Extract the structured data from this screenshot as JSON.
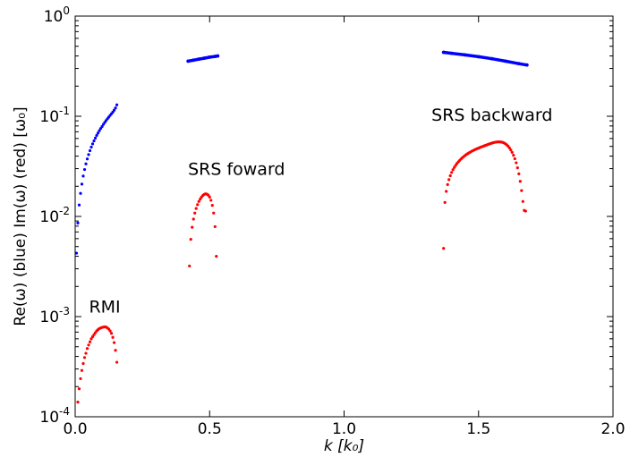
{
  "chart_data": {
    "type": "scatter",
    "xlabel": "k [k₀]",
    "ylabel": "Re(ω) (blue) Im(ω) (red) [ω₀]",
    "xlim": [
      0.0,
      2.0
    ],
    "ylim": [
      0.0001,
      1
    ],
    "yscale": "log",
    "grid": false,
    "x_ticks": [
      "0.0",
      "0.5",
      "1.0",
      "1.5",
      "2.0"
    ],
    "y_ticks": [
      {
        "base": "10",
        "exp": "-4"
      },
      {
        "base": "10",
        "exp": "-3"
      },
      {
        "base": "10",
        "exp": "-2"
      },
      {
        "base": "10",
        "exp": "-1"
      },
      {
        "base": "10",
        "exp": "0"
      }
    ],
    "annotations": [
      {
        "text": "RMI",
        "x": 0.11,
        "y": 0.0011
      },
      {
        "text": "SRS foward",
        "x": 0.6,
        "y": 0.026
      },
      {
        "text": "SRS backward",
        "x": 1.55,
        "y": 0.09
      }
    ],
    "series": [
      {
        "id": "re_rmi",
        "color": "#0000ff",
        "marker": "dot",
        "dense": false,
        "x": [
          0.005,
          0.01,
          0.015,
          0.02,
          0.025,
          0.03,
          0.035,
          0.04,
          0.045,
          0.05,
          0.055,
          0.06,
          0.065,
          0.07,
          0.075,
          0.08,
          0.085,
          0.09,
          0.095,
          0.1,
          0.105,
          0.11,
          0.115,
          0.12,
          0.125,
          0.13,
          0.135,
          0.14,
          0.145,
          0.15,
          0.155
        ],
        "y": [
          0.0043,
          0.0086,
          0.013,
          0.017,
          0.021,
          0.0253,
          0.0294,
          0.0335,
          0.0375,
          0.0414,
          0.0453,
          0.0492,
          0.053,
          0.0568,
          0.0606,
          0.0644,
          0.0681,
          0.0718,
          0.0755,
          0.079,
          0.083,
          0.0868,
          0.0906,
          0.0944,
          0.098,
          0.102,
          0.106,
          0.11,
          0.115,
          0.121,
          0.13
        ]
      },
      {
        "id": "re_srs_forward",
        "color": "#0000ff",
        "marker": "dot",
        "dense": true,
        "x": [
          0.42,
          0.44,
          0.46,
          0.48,
          0.5,
          0.52,
          0.53
        ],
        "y": [
          0.355,
          0.363,
          0.372,
          0.38,
          0.389,
          0.396,
          0.4
        ]
      },
      {
        "id": "re_srs_backward",
        "color": "#0000ff",
        "marker": "dot",
        "dense": true,
        "x": [
          1.37,
          1.4,
          1.45,
          1.5,
          1.55,
          1.6,
          1.65,
          1.68
        ],
        "y": [
          0.435,
          0.425,
          0.41,
          0.393,
          0.375,
          0.355,
          0.335,
          0.325
        ]
      },
      {
        "id": "im_rmi",
        "color": "#ff0000",
        "marker": "dot",
        "dense": false,
        "x": [
          0.01,
          0.015,
          0.02,
          0.025,
          0.03,
          0.035,
          0.04,
          0.045,
          0.05,
          0.055,
          0.06,
          0.065,
          0.07,
          0.075,
          0.08,
          0.085,
          0.09,
          0.095,
          0.1,
          0.105,
          0.11,
          0.115,
          0.12,
          0.125,
          0.13,
          0.135,
          0.14,
          0.145,
          0.15,
          0.155
        ],
        "y": [
          0.00014,
          0.00019,
          0.00024,
          0.00029,
          0.00034,
          0.00039,
          0.00043,
          0.00048,
          0.00052,
          0.00056,
          0.0006,
          0.00063,
          0.00066,
          0.00069,
          0.00072,
          0.00074,
          0.00076,
          0.00077,
          0.00078,
          0.000785,
          0.00079,
          0.000785,
          0.00077,
          0.00075,
          0.00072,
          0.00068,
          0.00062,
          0.00055,
          0.00046,
          0.00035
        ]
      },
      {
        "id": "im_srs_forward",
        "color": "#ff0000",
        "marker": "dot",
        "dense": false,
        "x": [
          0.425,
          0.43,
          0.435,
          0.44,
          0.445,
          0.45,
          0.455,
          0.46,
          0.465,
          0.47,
          0.475,
          0.48,
          0.485,
          0.49,
          0.495,
          0.5,
          0.505,
          0.51,
          0.515,
          0.52,
          0.525
        ],
        "y": [
          0.0032,
          0.0059,
          0.0078,
          0.0094,
          0.0108,
          0.012,
          0.0131,
          0.0141,
          0.0149,
          0.0156,
          0.0162,
          0.0166,
          0.0168,
          0.0167,
          0.0163,
          0.0156,
          0.0145,
          0.0129,
          0.0108,
          0.0079,
          0.004
        ]
      },
      {
        "id": "im_srs_backward",
        "color": "#ff0000",
        "marker": "dot",
        "dense": false,
        "x": [
          1.37,
          1.375,
          1.38,
          1.385,
          1.39,
          1.395,
          1.4,
          1.405,
          1.41,
          1.415,
          1.42,
          1.425,
          1.43,
          1.435,
          1.44,
          1.445,
          1.45,
          1.455,
          1.46,
          1.465,
          1.47,
          1.475,
          1.48,
          1.485,
          1.49,
          1.495,
          1.5,
          1.505,
          1.51,
          1.515,
          1.52,
          1.525,
          1.53,
          1.535,
          1.54,
          1.545,
          1.55,
          1.555,
          1.56,
          1.565,
          1.57,
          1.575,
          1.58,
          1.585,
          1.59,
          1.595,
          1.6,
          1.605,
          1.61,
          1.615,
          1.62,
          1.625,
          1.63,
          1.635,
          1.64,
          1.645,
          1.65,
          1.655,
          1.66,
          1.665,
          1.67,
          1.675
        ],
        "y": [
          0.0048,
          0.0138,
          0.0178,
          0.0208,
          0.0233,
          0.0255,
          0.0275,
          0.0293,
          0.0309,
          0.0324,
          0.0338,
          0.0351,
          0.0363,
          0.0375,
          0.0386,
          0.0396,
          0.0406,
          0.0415,
          0.0424,
          0.0432,
          0.044,
          0.0448,
          0.0455,
          0.0462,
          0.0469,
          0.0475,
          0.0481,
          0.0487,
          0.0493,
          0.0499,
          0.0505,
          0.0511,
          0.0517,
          0.0523,
          0.0529,
          0.0534,
          0.054,
          0.0545,
          0.0549,
          0.0552,
          0.0554,
          0.0555,
          0.0554,
          0.0552,
          0.0548,
          0.0541,
          0.0531,
          0.0518,
          0.0502,
          0.0483,
          0.0461,
          0.0436,
          0.0408,
          0.0377,
          0.0343,
          0.0306,
          0.0266,
          0.0224,
          0.0181,
          0.0141,
          0.0115,
          0.0113
        ]
      }
    ]
  }
}
